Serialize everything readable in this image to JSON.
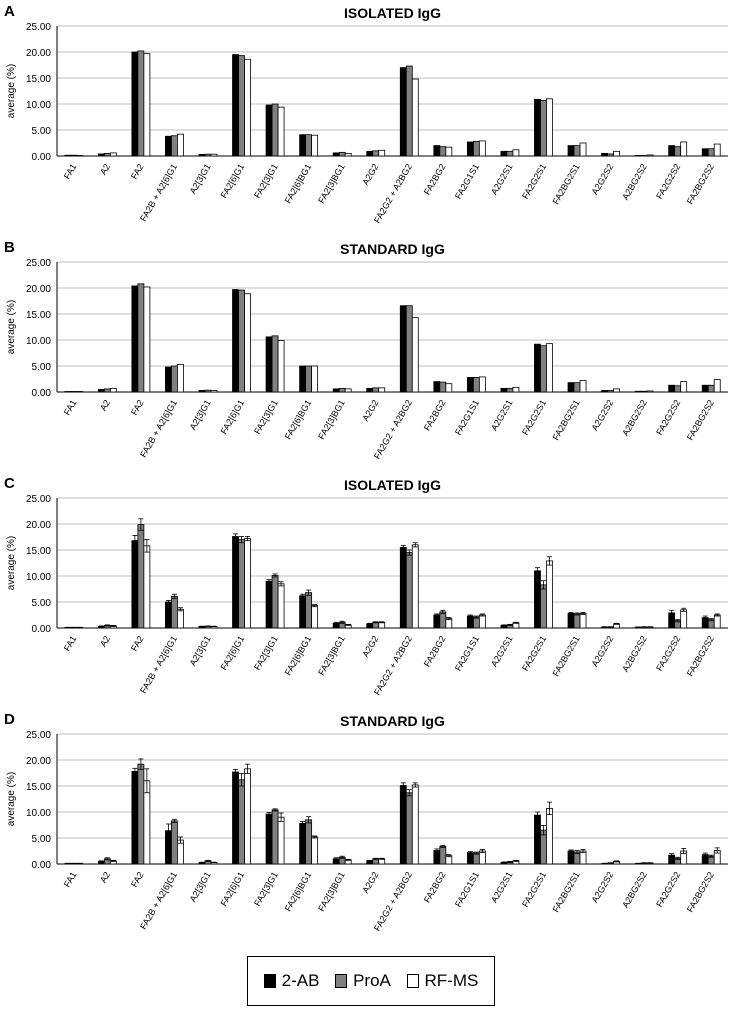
{
  "series_colors": [
    "#000000",
    "#808080",
    "#ffffff"
  ],
  "legend": [
    {
      "name": "2-AB",
      "color": "#000000"
    },
    {
      "name": "ProA",
      "color": "#808080"
    },
    {
      "name": "RF-MS",
      "color": "#ffffff"
    }
  ],
  "chart_data": [
    {
      "panel": "A",
      "type": "bar",
      "title": "ISOLATED IgG",
      "xlabel": "",
      "ylabel": "average (%)",
      "ylim": [
        0,
        25
      ],
      "ytick_step": 5,
      "yticks": [
        "0.00",
        "5.00",
        "10.00",
        "15.00",
        "20.00",
        "25.00"
      ],
      "error_bars": false,
      "categories": [
        "FA1",
        "A2",
        "FA2",
        "FA2B + A2[6]G1",
        "A2[3]G1",
        "FA2[6]G1",
        "FA2[3]G1",
        "FA2[6]BG1",
        "FA2[3]BG1",
        "A2G2",
        "FA2G2 + A2BG2",
        "FA2BG2",
        "FA2G1S1",
        "A2G2S1",
        "FA2G2S1",
        "FA2BG2S1",
        "A2G2S2",
        "A2BG2S2",
        "FA2G2S2",
        "FA2BG2S2"
      ],
      "series": [
        {
          "name": "2-AB",
          "values": [
            0.15,
            0.4,
            20.0,
            3.8,
            0.3,
            19.5,
            9.8,
            4.1,
            0.6,
            0.9,
            17.0,
            2.0,
            2.7,
            0.9,
            10.9,
            2.0,
            0.5,
            0.1,
            2.0,
            1.4
          ]
        },
        {
          "name": "ProA",
          "values": [
            0.15,
            0.5,
            20.2,
            3.9,
            0.35,
            19.3,
            10.0,
            4.1,
            0.7,
            1.0,
            17.3,
            1.8,
            2.8,
            0.9,
            10.7,
            2.0,
            0.4,
            0.1,
            1.8,
            1.4
          ]
        },
        {
          "name": "RF-MS",
          "values": [
            0.1,
            0.6,
            19.7,
            4.2,
            0.35,
            18.6,
            9.4,
            4.0,
            0.5,
            1.1,
            14.8,
            1.7,
            2.9,
            1.2,
            11.0,
            2.5,
            0.9,
            0.2,
            2.7,
            2.3
          ]
        }
      ]
    },
    {
      "panel": "B",
      "type": "bar",
      "title": "STANDARD IgG",
      "xlabel": "",
      "ylabel": "average (%)",
      "ylim": [
        0,
        25
      ],
      "ytick_step": 5,
      "yticks": [
        "0.00",
        "5.00",
        "10.00",
        "15.00",
        "20.00",
        "25.00"
      ],
      "error_bars": false,
      "categories": [
        "FA1",
        "A2",
        "FA2",
        "FA2B + A2[6]G1",
        "A2[3]G1",
        "FA2[6]G1",
        "FA2[3]G1",
        "FA2[6]BG1",
        "FA2[3]BG1",
        "A2G2",
        "FA2G2 + A2BG2",
        "FA2BG2",
        "FA2G1S1",
        "A2G2S1",
        "FA2G2S1",
        "FA2BG2S1",
        "A2G2S2",
        "A2BG2S2",
        "FA2G2S2",
        "FA2BG2S2"
      ],
      "series": [
        {
          "name": "2-AB",
          "values": [
            0.1,
            0.5,
            20.4,
            4.8,
            0.3,
            19.7,
            10.6,
            5.0,
            0.6,
            0.7,
            16.6,
            2.0,
            2.8,
            0.7,
            9.2,
            1.8,
            0.3,
            0.15,
            1.3,
            1.3
          ]
        },
        {
          "name": "ProA",
          "values": [
            0.1,
            0.6,
            20.8,
            5.0,
            0.35,
            19.6,
            10.8,
            5.0,
            0.7,
            0.8,
            16.6,
            1.9,
            2.8,
            0.7,
            8.9,
            1.8,
            0.3,
            0.15,
            1.2,
            1.3
          ]
        },
        {
          "name": "RF-MS",
          "values": [
            0.1,
            0.7,
            20.2,
            5.3,
            0.3,
            18.9,
            9.9,
            5.0,
            0.6,
            0.8,
            14.3,
            1.6,
            2.9,
            0.9,
            9.3,
            2.2,
            0.6,
            0.2,
            2.0,
            2.4
          ]
        }
      ]
    },
    {
      "panel": "C",
      "type": "bar",
      "title": "ISOLATED IgG",
      "xlabel": "",
      "ylabel": "average (%)",
      "ylim": [
        0,
        25
      ],
      "ytick_step": 5,
      "yticks": [
        "0.00",
        "5.00",
        "10.00",
        "15.00",
        "20.00",
        "25.00"
      ],
      "error_bars": true,
      "categories": [
        "FA1",
        "A2",
        "FA2",
        "FA2B + A2[6]G1",
        "A2[3]G1",
        "FA2[6]G1",
        "FA2[3]G1",
        "FA2[6]BG1",
        "FA2[3]BG1",
        "A2G2",
        "FA2G2 + A2BG2",
        "FA2BG2",
        "FA2G1S1",
        "A2G2S1",
        "FA2G2S1",
        "FA2BG2S1",
        "A2G2S2",
        "A2BG2S2",
        "FA2G2S2",
        "FA2BG2S2"
      ],
      "series": [
        {
          "name": "2-AB",
          "values": [
            0.1,
            0.3,
            16.8,
            5.0,
            0.3,
            17.6,
            9.0,
            6.2,
            0.9,
            0.8,
            15.5,
            2.5,
            2.3,
            0.5,
            11.0,
            2.8,
            0.2,
            0.15,
            2.9,
            2.0
          ],
          "errors": [
            0.05,
            0.1,
            1.0,
            0.3,
            0.05,
            0.5,
            0.3,
            0.3,
            0.2,
            0.1,
            0.4,
            0.2,
            0.2,
            0.1,
            0.6,
            0.2,
            0.05,
            0.05,
            0.5,
            0.3
          ]
        },
        {
          "name": "ProA",
          "values": [
            0.1,
            0.5,
            19.9,
            6.1,
            0.35,
            17.0,
            10.1,
            6.8,
            1.1,
            1.1,
            14.5,
            3.1,
            2.1,
            0.6,
            8.3,
            2.7,
            0.2,
            0.2,
            1.4,
            1.6
          ],
          "errors": [
            0.05,
            0.1,
            1.1,
            0.4,
            0.05,
            0.6,
            0.3,
            0.5,
            0.2,
            0.1,
            0.5,
            0.3,
            0.2,
            0.1,
            0.8,
            0.2,
            0.05,
            0.05,
            0.2,
            0.2
          ]
        },
        {
          "name": "RF-MS",
          "values": [
            0.1,
            0.4,
            15.8,
            3.6,
            0.3,
            17.2,
            8.5,
            4.3,
            0.6,
            1.1,
            16.0,
            1.8,
            2.5,
            1.0,
            12.9,
            2.8,
            0.8,
            0.2,
            3.5,
            2.5
          ],
          "errors": [
            0.05,
            0.1,
            1.2,
            0.3,
            0.05,
            0.4,
            0.4,
            0.2,
            0.1,
            0.1,
            0.4,
            0.2,
            0.2,
            0.1,
            0.8,
            0.2,
            0.1,
            0.05,
            0.3,
            0.2
          ]
        }
      ]
    },
    {
      "panel": "D",
      "type": "bar",
      "title": "STANDARD IgG",
      "xlabel": "",
      "ylabel": "average (%)",
      "ylim": [
        0,
        25
      ],
      "ytick_step": 5,
      "yticks": [
        "0.00",
        "5.00",
        "10.00",
        "15.00",
        "20.00",
        "25.00"
      ],
      "error_bars": true,
      "categories": [
        "FA1",
        "A2",
        "FA2",
        "FA2B + A2[6]G1",
        "A2[3]G1",
        "FA2[6]G1",
        "FA2[3]G1",
        "FA2[6]BG1",
        "FA2[3]BG1",
        "A2G2",
        "FA2G2 + A2BG2",
        "FA2BG2",
        "FA2G1S1",
        "A2G2S1",
        "FA2G2S1",
        "FA2BG2S1",
        "A2G2S2",
        "A2BG2S2",
        "FA2G2S2",
        "FA2BG2S2"
      ],
      "series": [
        {
          "name": "2-AB",
          "values": [
            0.1,
            0.5,
            17.8,
            6.4,
            0.3,
            17.7,
            9.6,
            7.8,
            1.0,
            0.6,
            15.1,
            2.6,
            2.2,
            0.3,
            9.4,
            2.5,
            0.1,
            0.1,
            1.7,
            1.8
          ],
          "errors": [
            0.05,
            0.1,
            0.6,
            1.3,
            0.05,
            0.5,
            0.3,
            0.4,
            0.2,
            0.1,
            0.5,
            0.3,
            0.2,
            0.1,
            0.6,
            0.2,
            0.05,
            0.05,
            0.3,
            0.3
          ]
        },
        {
          "name": "ProA",
          "values": [
            0.1,
            1.0,
            19.2,
            8.3,
            0.6,
            16.2,
            10.4,
            8.5,
            1.3,
            1.0,
            13.7,
            3.4,
            2.1,
            0.4,
            6.5,
            2.3,
            0.2,
            0.2,
            1.1,
            1.5
          ],
          "errors": [
            0.05,
            0.2,
            1.0,
            0.3,
            0.1,
            1.2,
            0.2,
            0.6,
            0.2,
            0.1,
            0.6,
            0.2,
            0.2,
            0.1,
            0.9,
            0.3,
            0.05,
            0.05,
            0.2,
            0.2
          ]
        },
        {
          "name": "RF-MS",
          "values": [
            0.1,
            0.6,
            16.0,
            4.6,
            0.3,
            18.3,
            9.0,
            5.2,
            0.8,
            1.0,
            15.2,
            1.6,
            2.5,
            0.6,
            10.7,
            2.5,
            0.5,
            0.2,
            2.5,
            2.6
          ],
          "errors": [
            0.05,
            0.1,
            2.3,
            0.6,
            0.05,
            0.9,
            0.8,
            0.2,
            0.1,
            0.1,
            0.4,
            0.2,
            0.3,
            0.1,
            1.2,
            0.3,
            0.1,
            0.05,
            0.5,
            0.5
          ]
        }
      ]
    }
  ]
}
